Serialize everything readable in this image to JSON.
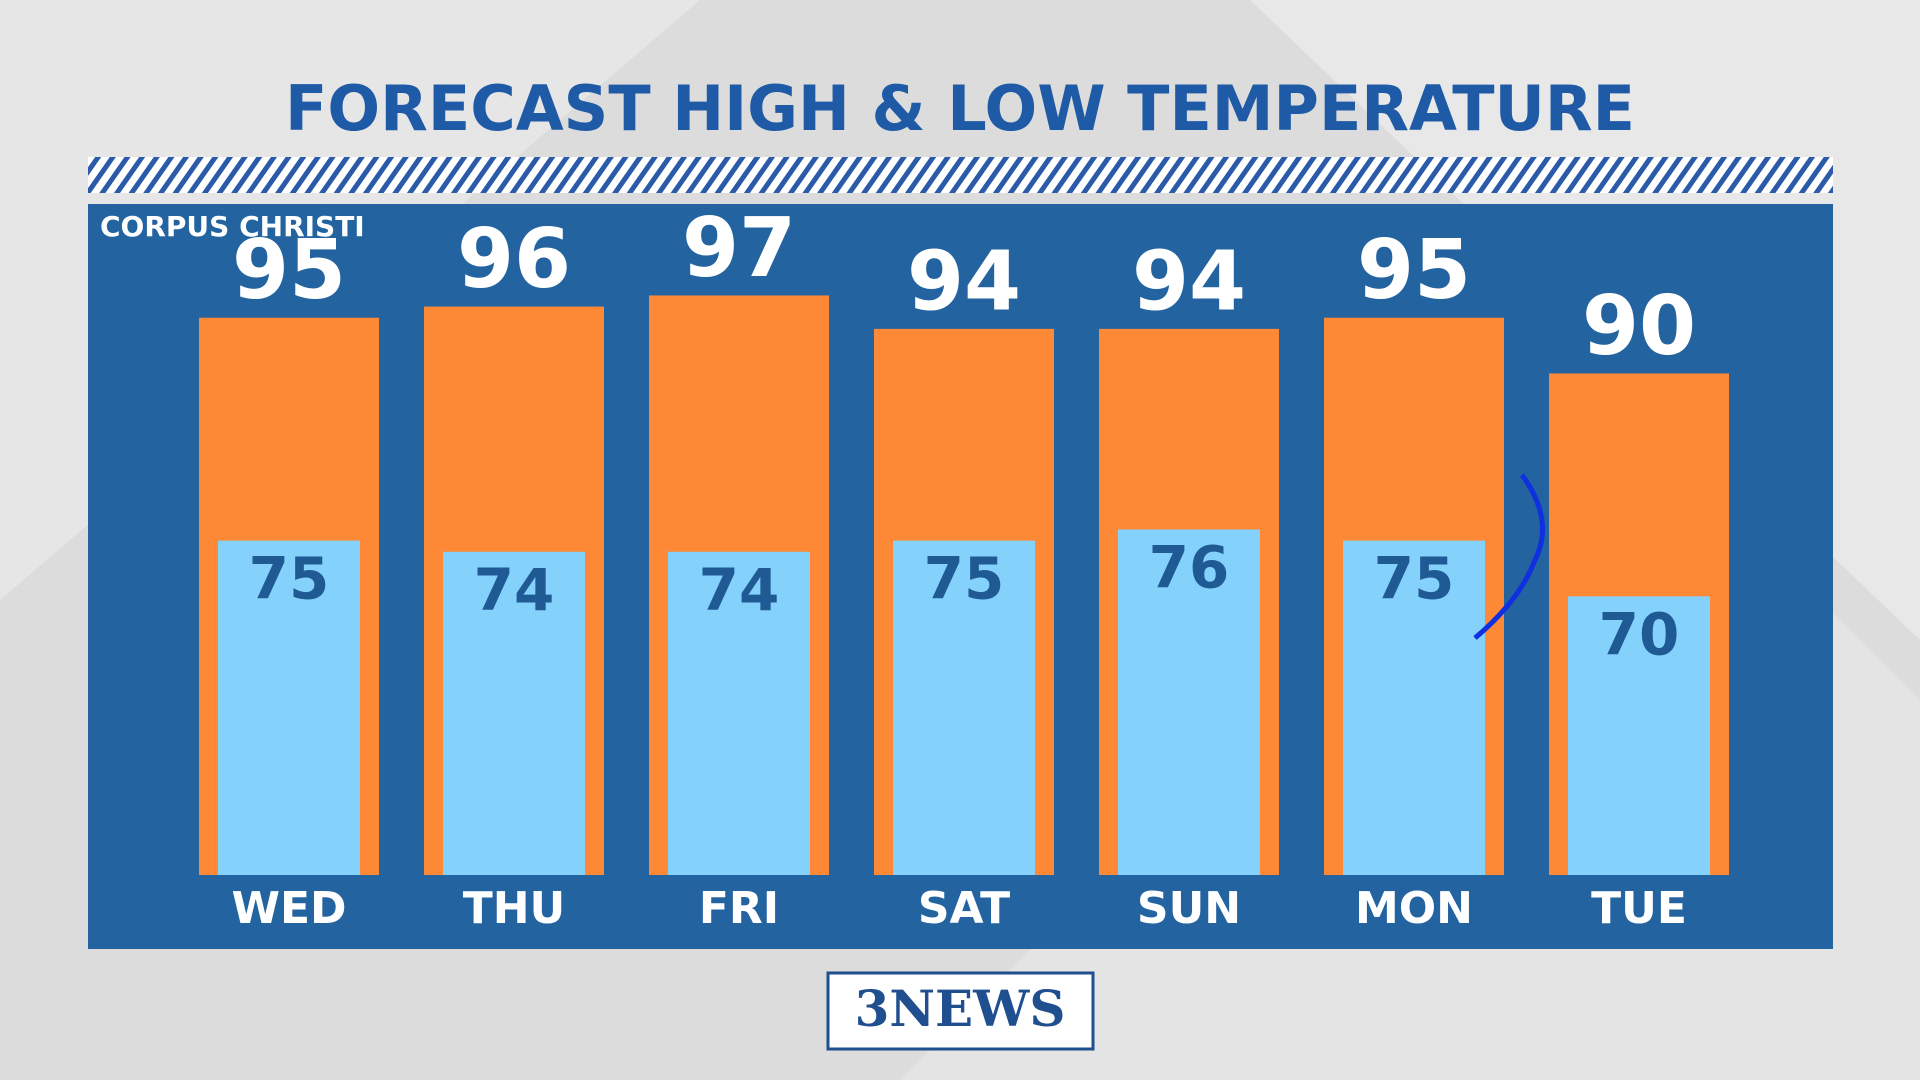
{
  "chart_data": {
    "type": "bar",
    "title": "FORECAST HIGH & LOW TEMPERATURE",
    "location": "CORPUS CHRISTI",
    "categories": [
      "WED",
      "THU",
      "FRI",
      "SAT",
      "SUN",
      "MON",
      "TUE"
    ],
    "series": [
      {
        "color": "#fd8836",
        "values": [
          95,
          96,
          97,
          94,
          94,
          95,
          90
        ]
      },
      {
        "color": "#84d2fb",
        "values": [
          75,
          74,
          74,
          75,
          76,
          75,
          70
        ]
      }
    ],
    "ylim": [
      45,
      100
    ]
  },
  "logo": "3NEWS"
}
